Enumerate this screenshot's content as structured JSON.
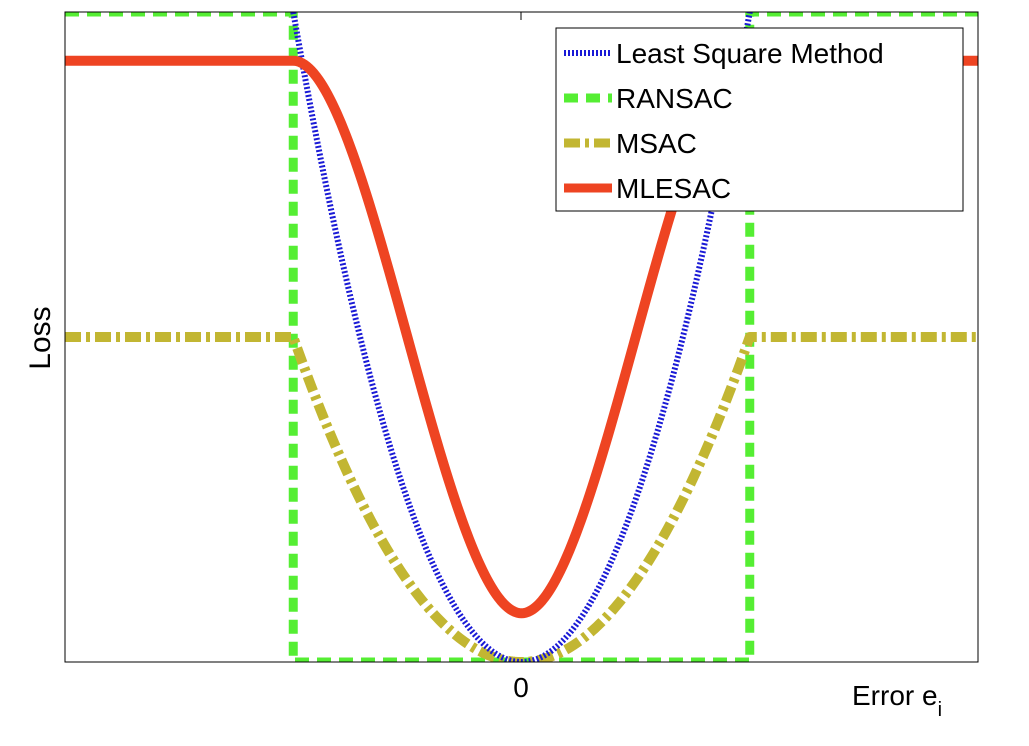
{
  "chart_data": {
    "type": "line",
    "title": "",
    "xlabel": "Error e",
    "xlabel_subscript": "i",
    "ylabel": "Loss",
    "x_ticks": [
      "0"
    ],
    "xlim": [
      -1,
      1
    ],
    "ylim": [
      0,
      1
    ],
    "grid": false,
    "legend_position": "top-right",
    "threshold": 0.5,
    "series": [
      {
        "name": "Least Square Method",
        "kind": "quadratic",
        "style": "dotted",
        "color": "#1a1ad6",
        "coef": 4.0
      },
      {
        "name": "RANSAC",
        "kind": "step",
        "style": "dashed",
        "color": "#55ee33",
        "inlier": 0,
        "outlier": 1.0
      },
      {
        "name": "MSAC",
        "kind": "truncated-quadratic",
        "style": "dash-dot",
        "color": "#c2b632",
        "coef": 0.5,
        "cap": 0.5
      },
      {
        "name": "MLESAC",
        "kind": "smooth",
        "style": "solid",
        "color": "#ee4422",
        "min": 0.075,
        "max": 0.925
      }
    ]
  }
}
